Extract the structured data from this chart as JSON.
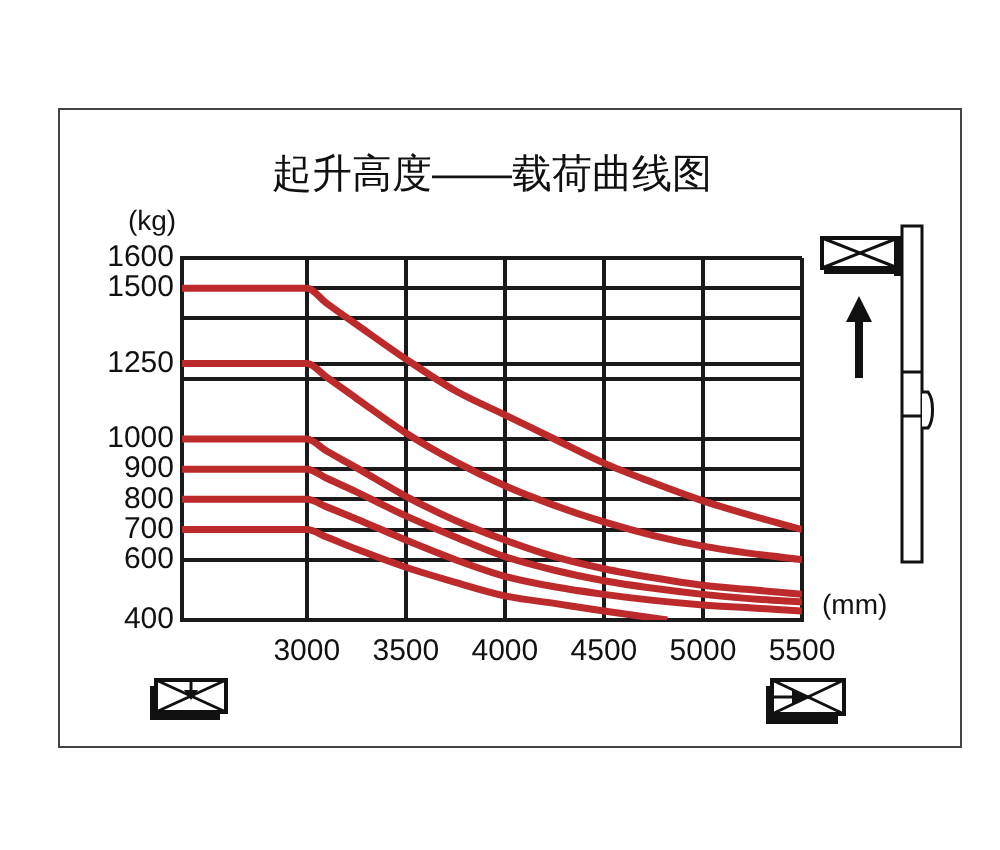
{
  "chart_data": {
    "type": "line",
    "title": "起升高度——载荷曲线图",
    "xlabel": "(mm)",
    "ylabel": "(kg)",
    "xlim": [
      2370,
      5500
    ],
    "xticks": [
      3000,
      3500,
      4000,
      4500,
      5000,
      5500
    ],
    "ylim": [
      400,
      1600
    ],
    "yticks": [
      400,
      600,
      700,
      800,
      900,
      1000,
      {
        "value": 1200,
        "label": null
      },
      1250,
      {
        "value": 1400,
        "label": null
      },
      1500,
      1600
    ],
    "grid": true,
    "series": [
      {
        "color": "#bd2a2c",
        "x": [
          2370,
          3000,
          3100,
          3250,
          3500,
          3750,
          4000,
          4250,
          4500,
          4750,
          5000,
          5250,
          5500
        ],
        "values": [
          1500,
          1500,
          1450,
          1380,
          1265,
          1160,
          1080,
          1000,
          920,
          855,
          795,
          745,
          700
        ]
      },
      {
        "color": "#bd2a2c",
        "x": [
          2370,
          3000,
          3100,
          3250,
          3500,
          3750,
          4000,
          4250,
          4500,
          4750,
          5000,
          5250,
          5500
        ],
        "values": [
          1250,
          1250,
          1205,
          1135,
          1020,
          925,
          845,
          780,
          725,
          680,
          645,
          620,
          600
        ]
      },
      {
        "color": "#bd2a2c",
        "x": [
          2370,
          3000,
          3100,
          3250,
          3500,
          3750,
          4000,
          4250,
          4500,
          4750,
          5000,
          5250,
          5500
        ],
        "values": [
          1000,
          1000,
          960,
          905,
          810,
          730,
          665,
          610,
          570,
          540,
          515,
          500,
          485
        ]
      },
      {
        "color": "#bd2a2c",
        "x": [
          2370,
          3000,
          3100,
          3250,
          3500,
          3750,
          4000,
          4250,
          4500,
          4750,
          5000,
          5250,
          5500
        ],
        "values": [
          900,
          900,
          870,
          825,
          745,
          675,
          610,
          565,
          530,
          505,
          485,
          470,
          460
        ]
      },
      {
        "color": "#bd2a2c",
        "x": [
          2370,
          3000,
          3100,
          3250,
          3500,
          3750,
          4000,
          4250,
          4500,
          4750,
          5000,
          5250,
          5500
        ],
        "values": [
          800,
          800,
          775,
          735,
          665,
          600,
          545,
          510,
          485,
          465,
          450,
          440,
          430
        ]
      },
      {
        "color": "#bd2a2c",
        "x": [
          2370,
          3000,
          3100,
          3250,
          3500,
          3750,
          4000,
          4250,
          4500,
          4820
        ],
        "values": [
          700,
          700,
          675,
          635,
          575,
          525,
          480,
          455,
          430,
          400
        ]
      }
    ]
  }
}
